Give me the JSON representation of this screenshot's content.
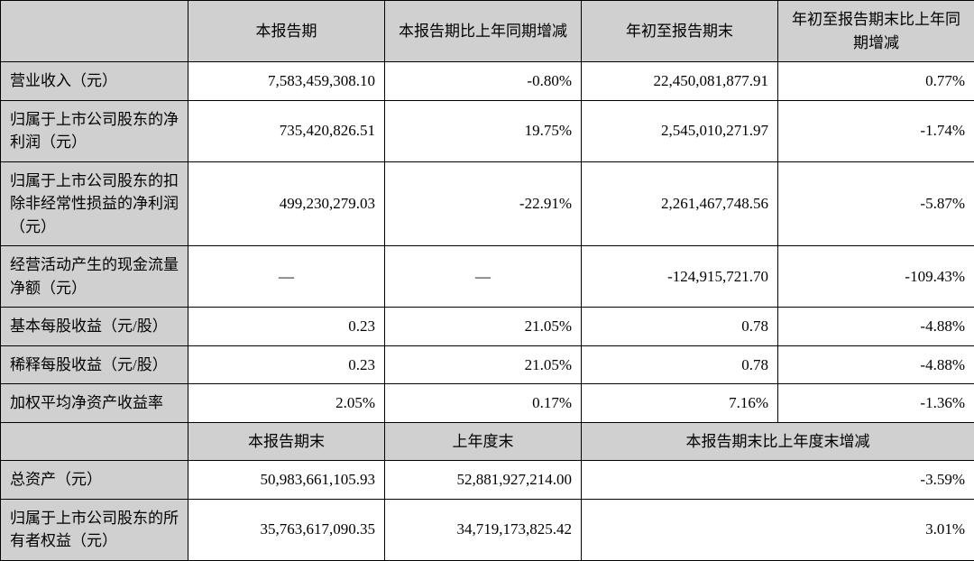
{
  "table": {
    "type": "table",
    "colors": {
      "header_bg": "#d0d0d0",
      "cell_bg": "#ffffff",
      "border": "#000000",
      "text": "#000000"
    },
    "fontsize": 17,
    "columns_top": [
      "",
      "本报告期",
      "本报告期比上年同期增减",
      "年初至报告期末",
      "年初至报告期末比上年同期增减"
    ],
    "rows_top": [
      {
        "label": "营业收入（元）",
        "c1": "7,583,459,308.10",
        "c2": "-0.80%",
        "c3": "22,450,081,877.91",
        "c4": "0.77%"
      },
      {
        "label": "归属于上市公司股东的净利润（元）",
        "c1": "735,420,826.51",
        "c2": "19.75%",
        "c3": "2,545,010,271.97",
        "c4": "-1.74%"
      },
      {
        "label": "归属于上市公司股东的扣除非经常性损益的净利润（元）",
        "c1": "499,230,279.03",
        "c2": "-22.91%",
        "c3": "2,261,467,748.56",
        "c4": "-5.87%"
      },
      {
        "label": "经营活动产生的现金流量净额（元）",
        "c1": "—",
        "c2": "—",
        "c3": "-124,915,721.70",
        "c4": "-109.43%"
      },
      {
        "label": "基本每股收益（元/股）",
        "c1": "0.23",
        "c2": "21.05%",
        "c3": "0.78",
        "c4": "-4.88%"
      },
      {
        "label": "稀释每股收益（元/股）",
        "c1": "0.23",
        "c2": "21.05%",
        "c3": "0.78",
        "c4": "-4.88%"
      },
      {
        "label": "加权平均净资产收益率",
        "c1": "2.05%",
        "c2": "0.17%",
        "c3": "7.16%",
        "c4": "-1.36%"
      }
    ],
    "columns_bottom": [
      "",
      "本报告期末",
      "上年度末",
      "本报告期末比上年度末增减"
    ],
    "rows_bottom": [
      {
        "label": "总资产（元）",
        "c1": "50,983,661,105.93",
        "c2": "52,881,927,214.00",
        "c3": "-3.59%"
      },
      {
        "label": "归属于上市公司股东的所有者权益（元）",
        "c1": "35,763,617,090.35",
        "c2": "34,719,173,825.42",
        "c3": "3.01%"
      }
    ]
  }
}
